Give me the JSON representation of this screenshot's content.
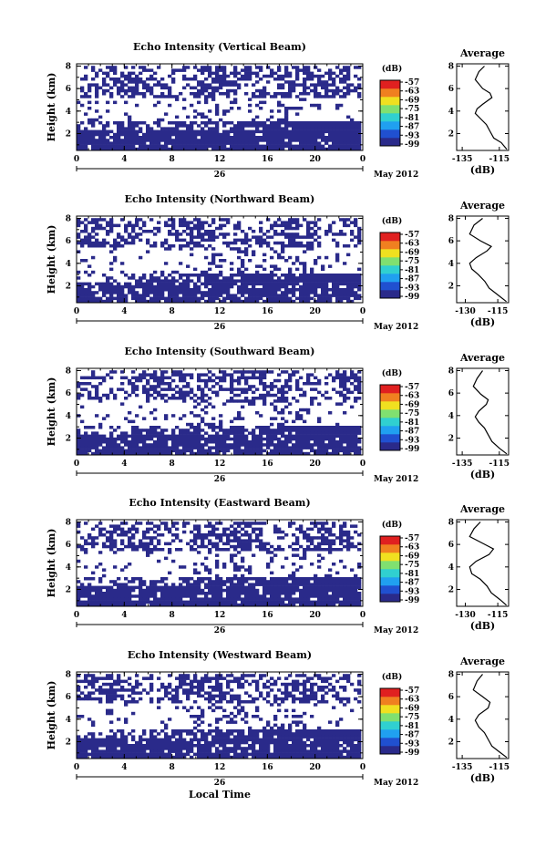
{
  "chart_data": [
    {
      "type": "heatmap",
      "title": "Echo Intensity (Vertical Beam)",
      "xlabel": "",
      "ylabel": "Height (km)",
      "x_ticks": [
        "0",
        "4",
        "8",
        "12",
        "16",
        "20",
        "0"
      ],
      "x_day": "26",
      "x_month": "May 2012",
      "y_ticks": [
        "8",
        "6",
        "4",
        "2"
      ],
      "ylim": [
        0.5,
        8.2
      ],
      "cmap": [
        "#2a2a8a",
        "#2050d0",
        "#20a0f0",
        "#30d0d0",
        "#80e070",
        "#f0e020",
        "#f08020",
        "#e02020"
      ],
      "colorbar": {
        "unit": "(dB)",
        "ticks": [
          "-57",
          "-63",
          "-69",
          "-75",
          "-81",
          "-87",
          "-93",
          "-99"
        ]
      },
      "layers": [
        {
          "y0": 0.5,
          "y1": 3.0,
          "density": 0.93
        },
        {
          "y0": 3.0,
          "y1": 5.2,
          "density": 0.08
        },
        {
          "y0": 5.2,
          "y1": 8.2,
          "density": 0.45
        }
      ],
      "avg_profile": {
        "title": "Average",
        "xlabel": "(dB)",
        "x_ticks": [
          "-135",
          "-115"
        ],
        "y_ticks": [
          "8",
          "6",
          "4",
          "2"
        ],
        "xlim": [
          -138,
          -110
        ],
        "points": [
          [
            -123,
            8
          ],
          [
            -126,
            7.5
          ],
          [
            -128,
            6.8
          ],
          [
            -124,
            6
          ],
          [
            -120,
            5.6
          ],
          [
            -119,
            5.2
          ],
          [
            -124,
            4.6
          ],
          [
            -127,
            4.2
          ],
          [
            -128,
            3.8
          ],
          [
            -125,
            3.3
          ],
          [
            -122,
            2.8
          ],
          [
            -120,
            2.2
          ],
          [
            -118,
            1.6
          ],
          [
            -114,
            1.2
          ],
          [
            -111,
            0.6
          ]
        ]
      }
    },
    {
      "type": "heatmap",
      "title": "Echo Intensity (Northward Beam)",
      "xlabel": "",
      "ylabel": "Height (km)",
      "x_ticks": [
        "0",
        "4",
        "8",
        "12",
        "16",
        "20",
        "0"
      ],
      "x_day": "26",
      "x_month": "May 2012",
      "y_ticks": [
        "8",
        "6",
        "4",
        "2"
      ],
      "ylim": [
        0.5,
        8.2
      ],
      "cmap": [
        "#2a2a8a",
        "#2050d0",
        "#20a0f0",
        "#30d0d0",
        "#80e070",
        "#f0e020",
        "#f08020",
        "#e02020"
      ],
      "colorbar": {
        "unit": "(dB)",
        "ticks": [
          "-57",
          "-63",
          "-69",
          "-75",
          "-81",
          "-87",
          "-93",
          "-99"
        ]
      },
      "layers": [
        {
          "y0": 0.5,
          "y1": 3.0,
          "density": 0.88
        },
        {
          "y0": 3.0,
          "y1": 5.4,
          "density": 0.1
        },
        {
          "y0": 5.4,
          "y1": 8.2,
          "density": 0.4
        }
      ],
      "avg_profile": {
        "title": "Average",
        "xlabel": "(dB)",
        "x_ticks": [
          "-130",
          "-115"
        ],
        "y_ticks": [
          "8",
          "6",
          "4",
          "2"
        ],
        "xlim": [
          -134,
          -110
        ],
        "points": [
          [
            -122,
            8
          ],
          [
            -126,
            7.4
          ],
          [
            -128,
            6.6
          ],
          [
            -123,
            6
          ],
          [
            -118,
            5.5
          ],
          [
            -120,
            5.1
          ],
          [
            -125,
            4.5
          ],
          [
            -128,
            4.0
          ],
          [
            -127,
            3.5
          ],
          [
            -124,
            3.0
          ],
          [
            -121,
            2.4
          ],
          [
            -119,
            1.8
          ],
          [
            -115,
            1.2
          ],
          [
            -111,
            0.6
          ]
        ]
      }
    },
    {
      "type": "heatmap",
      "title": "Echo Intensity (Southward Beam)",
      "xlabel": "",
      "ylabel": "Height (km)",
      "x_ticks": [
        "0",
        "4",
        "8",
        "12",
        "16",
        "20",
        "0"
      ],
      "x_day": "26",
      "x_month": "May 2012",
      "y_ticks": [
        "8",
        "6",
        "4",
        "2"
      ],
      "ylim": [
        0.5,
        8.2
      ],
      "cmap": [
        "#2a2a8a",
        "#2050d0",
        "#20a0f0",
        "#30d0d0",
        "#80e070",
        "#f0e020",
        "#f08020",
        "#e02020"
      ],
      "colorbar": {
        "unit": "(dB)",
        "ticks": [
          "-57",
          "-63",
          "-69",
          "-75",
          "-81",
          "-87",
          "-93",
          "-99"
        ]
      },
      "layers": [
        {
          "y0": 0.5,
          "y1": 3.1,
          "density": 0.9
        },
        {
          "y0": 3.1,
          "y1": 5.3,
          "density": 0.1
        },
        {
          "y0": 5.3,
          "y1": 8.2,
          "density": 0.42
        }
      ],
      "avg_profile": {
        "title": "Average",
        "xlabel": "(dB)",
        "x_ticks": [
          "-135",
          "-115"
        ],
        "y_ticks": [
          "8",
          "6",
          "4",
          "2"
        ],
        "xlim": [
          -138,
          -110
        ],
        "points": [
          [
            -124,
            8
          ],
          [
            -127,
            7.3
          ],
          [
            -129,
            6.6
          ],
          [
            -125,
            5.9
          ],
          [
            -121,
            5.4
          ],
          [
            -122,
            5.0
          ],
          [
            -126,
            4.4
          ],
          [
            -128,
            3.9
          ],
          [
            -126,
            3.4
          ],
          [
            -123,
            2.9
          ],
          [
            -121,
            2.3
          ],
          [
            -119,
            1.7
          ],
          [
            -115,
            1.1
          ],
          [
            -111,
            0.6
          ]
        ]
      }
    },
    {
      "type": "heatmap",
      "title": "Echo Intensity (Eastward Beam)",
      "xlabel": "",
      "ylabel": "Height (km)",
      "x_ticks": [
        "0",
        "4",
        "8",
        "12",
        "16",
        "20",
        "0"
      ],
      "x_day": "26",
      "x_month": "May 2012",
      "y_ticks": [
        "8",
        "6",
        "4",
        "2"
      ],
      "ylim": [
        0.5,
        8.2
      ],
      "cmap": [
        "#2a2a8a",
        "#2050d0",
        "#20a0f0",
        "#30d0d0",
        "#80e070",
        "#f0e020",
        "#f08020",
        "#e02020"
      ],
      "colorbar": {
        "unit": "(dB)",
        "ticks": [
          "-57",
          "-63",
          "-69",
          "-75",
          "-81",
          "-87",
          "-93",
          "-99"
        ]
      },
      "layers": [
        {
          "y0": 0.5,
          "y1": 3.0,
          "density": 0.9
        },
        {
          "y0": 3.0,
          "y1": 5.3,
          "density": 0.09
        },
        {
          "y0": 5.3,
          "y1": 8.2,
          "density": 0.43
        }
      ],
      "avg_profile": {
        "title": "Average",
        "xlabel": "(dB)",
        "x_ticks": [
          "-130",
          "-115"
        ],
        "y_ticks": [
          "8",
          "6",
          "4",
          "2"
        ],
        "xlim": [
          -134,
          -110
        ],
        "points": [
          [
            -123,
            8
          ],
          [
            -126,
            7.4
          ],
          [
            -128,
            6.7
          ],
          [
            -122,
            6.1
          ],
          [
            -117,
            5.6
          ],
          [
            -119,
            5.1
          ],
          [
            -125,
            4.5
          ],
          [
            -128,
            4.0
          ],
          [
            -127,
            3.4
          ],
          [
            -123,
            2.9
          ],
          [
            -120,
            2.3
          ],
          [
            -118,
            1.7
          ],
          [
            -114,
            1.1
          ],
          [
            -111,
            0.6
          ]
        ]
      }
    },
    {
      "type": "heatmap",
      "title": "Echo Intensity (Westward Beam)",
      "xlabel": "Local Time",
      "ylabel": "Height (km)",
      "x_ticks": [
        "0",
        "4",
        "8",
        "12",
        "16",
        "20",
        "0"
      ],
      "x_day": "26",
      "x_month": "May 2012",
      "y_ticks": [
        "8",
        "6",
        "4",
        "2"
      ],
      "ylim": [
        0.5,
        8.2
      ],
      "cmap": [
        "#2a2a8a",
        "#2050d0",
        "#20a0f0",
        "#30d0d0",
        "#80e070",
        "#f0e020",
        "#f08020",
        "#e02020"
      ],
      "colorbar": {
        "unit": "(dB)",
        "ticks": [
          "-57",
          "-63",
          "-69",
          "-75",
          "-81",
          "-87",
          "-93",
          "-99"
        ]
      },
      "layers": [
        {
          "y0": 0.5,
          "y1": 3.1,
          "density": 0.9
        },
        {
          "y0": 3.1,
          "y1": 5.3,
          "density": 0.1
        },
        {
          "y0": 5.3,
          "y1": 8.2,
          "density": 0.44
        }
      ],
      "avg_profile": {
        "title": "Average",
        "xlabel": "(dB)",
        "x_ticks": [
          "-135",
          "-115"
        ],
        "y_ticks": [
          "8",
          "6",
          "4",
          "2"
        ],
        "xlim": [
          -138,
          -110
        ],
        "points": [
          [
            -124,
            8
          ],
          [
            -127,
            7.4
          ],
          [
            -129,
            6.6
          ],
          [
            -124,
            6.0
          ],
          [
            -120,
            5.5
          ],
          [
            -121,
            5.0
          ],
          [
            -126,
            4.4
          ],
          [
            -128,
            3.9
          ],
          [
            -126,
            3.3
          ],
          [
            -123,
            2.8
          ],
          [
            -121,
            2.2
          ],
          [
            -119,
            1.6
          ],
          [
            -115,
            1.1
          ],
          [
            -111,
            0.6
          ]
        ]
      }
    }
  ]
}
